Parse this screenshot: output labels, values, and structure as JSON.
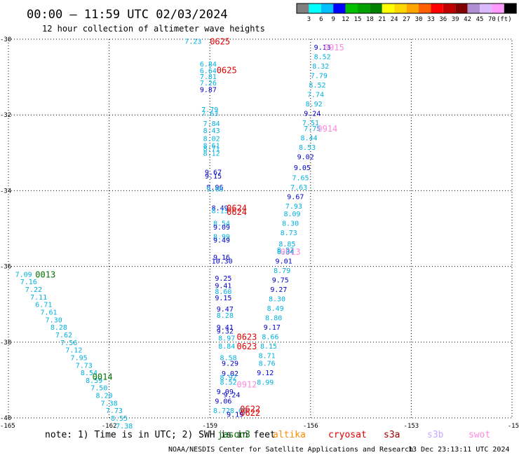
{
  "header": {
    "title": "00:00 – 11:59 UTC 02/03/2024",
    "subtitle": "12 hour collection of altimeter wave heights"
  },
  "colorbar": {
    "colors": [
      "#7f7f7f",
      "#00ffff",
      "#00bfff",
      "#0000ff",
      "#00c000",
      "#00a000",
      "#008000",
      "#ffff00",
      "#ffd700",
      "#ffa500",
      "#ff6000",
      "#ff0000",
      "#c00000",
      "#800000",
      "#b08fd0",
      "#dcb8ff",
      "#ff99ff",
      "#000000"
    ],
    "labels": [
      "3",
      "6",
      "9",
      "12",
      "15",
      "18",
      "21",
      "24",
      "27",
      "30",
      "33",
      "36",
      "39",
      "42",
      "45",
      "70",
      "(ft)"
    ]
  },
  "chart_data": {
    "type": "scatter",
    "xlim": [
      -165,
      -150
    ],
    "ylim": [
      -40,
      -30
    ],
    "x_ticks": [
      "-165",
      "-162",
      "-159",
      "-156",
      "-153",
      "-15"
    ],
    "y_ticks": [
      "-30",
      "-32",
      "-34",
      "-36",
      "-38",
      "-40"
    ],
    "grid": true,
    "colors": {
      "cyan": "#00b0e0",
      "blue": "#0000cc",
      "green": "#007000",
      "red": "#e00000",
      "pink": "#ff88dd"
    },
    "track_labels": [
      {
        "text": "0625",
        "x": -159.0,
        "y": -30.05,
        "color": "red"
      },
      {
        "text": "0625",
        "x": -158.8,
        "y": -30.8,
        "color": "red"
      },
      {
        "text": "0915",
        "x": -155.6,
        "y": -30.2,
        "color": "pink"
      },
      {
        "text": "0914",
        "x": -155.8,
        "y": -32.35,
        "color": "pink"
      },
      {
        "text": "0624",
        "x": -158.5,
        "y": -34.45,
        "color": "red"
      },
      {
        "text": "0624",
        "x": -158.5,
        "y": -34.55,
        "color": "red"
      },
      {
        "text": "0913",
        "x": -156.9,
        "y": -35.6,
        "color": "pink"
      },
      {
        "text": "0013",
        "x": -164.2,
        "y": -36.2,
        "color": "green"
      },
      {
        "text": "0623",
        "x": -158.2,
        "y": -37.85,
        "color": "red"
      },
      {
        "text": "0623",
        "x": -158.2,
        "y": -38.1,
        "color": "red"
      },
      {
        "text": "0014",
        "x": -162.5,
        "y": -38.9,
        "color": "green"
      },
      {
        "text": "0912",
        "x": -158.2,
        "y": -39.1,
        "color": "pink"
      },
      {
        "text": "0622",
        "x": -158.1,
        "y": -39.75,
        "color": "red"
      },
      {
        "text": "0622",
        "x": -158.1,
        "y": -39.85,
        "color": "red"
      }
    ],
    "points": [
      {
        "v": "7.23",
        "x": -159.75,
        "y": -30.05,
        "color": "cyan"
      },
      {
        "v": "6.84",
        "x": -159.3,
        "y": -30.65,
        "color": "cyan"
      },
      {
        "v": "6.64",
        "x": -159.3,
        "y": -30.82,
        "color": "cyan"
      },
      {
        "v": "7.81",
        "x": -159.3,
        "y": -30.98,
        "color": "cyan"
      },
      {
        "v": "7.26",
        "x": -159.3,
        "y": -31.15,
        "color": "cyan"
      },
      {
        "v": "9.87",
        "x": -159.3,
        "y": -31.32,
        "color": "blue"
      },
      {
        "v": "7.79",
        "x": -159.25,
        "y": -31.85,
        "color": "cyan"
      },
      {
        "v": "7.63",
        "x": -159.25,
        "y": -31.95,
        "color": "cyan"
      },
      {
        "v": "7.84",
        "x": -159.2,
        "y": -32.22,
        "color": "cyan"
      },
      {
        "v": "8.43",
        "x": -159.2,
        "y": -32.4,
        "color": "cyan"
      },
      {
        "v": "8.02",
        "x": -159.2,
        "y": -32.62,
        "color": "cyan"
      },
      {
        "v": "8.61",
        "x": -159.2,
        "y": -32.8,
        "color": "cyan"
      },
      {
        "v": "8.71",
        "x": -159.2,
        "y": -32.88,
        "color": "cyan"
      },
      {
        "v": "8.12",
        "x": -159.2,
        "y": -33.0,
        "color": "cyan"
      },
      {
        "v": "9.67",
        "x": -159.15,
        "y": -33.5,
        "color": "blue"
      },
      {
        "v": "9.15",
        "x": -159.15,
        "y": -33.6,
        "color": "blue"
      },
      {
        "v": "8.96",
        "x": -159.1,
        "y": -33.9,
        "color": "blue"
      },
      {
        "v": "9.06",
        "x": -159.1,
        "y": -33.95,
        "color": "cyan"
      },
      {
        "v": "8.49",
        "x": -158.95,
        "y": -34.45,
        "color": "blue"
      },
      {
        "v": "8.13",
        "x": -158.95,
        "y": -34.52,
        "color": "cyan"
      },
      {
        "v": "8.54",
        "x": -158.9,
        "y": -34.85,
        "color": "cyan"
      },
      {
        "v": "9.09",
        "x": -158.9,
        "y": -34.95,
        "color": "blue"
      },
      {
        "v": "8.99",
        "x": -158.9,
        "y": -35.2,
        "color": "cyan"
      },
      {
        "v": "9.49",
        "x": -158.9,
        "y": -35.3,
        "color": "blue"
      },
      {
        "v": "9.16",
        "x": -158.9,
        "y": -35.75,
        "color": "blue"
      },
      {
        "v": "10.30",
        "x": -158.95,
        "y": -35.85,
        "color": "blue"
      },
      {
        "v": "9.25",
        "x": -158.85,
        "y": -36.3,
        "color": "blue"
      },
      {
        "v": "9.41",
        "x": -158.85,
        "y": -36.5,
        "color": "blue"
      },
      {
        "v": "8.60",
        "x": -158.85,
        "y": -36.65,
        "color": "cyan"
      },
      {
        "v": "9.15",
        "x": -158.85,
        "y": -36.82,
        "color": "blue"
      },
      {
        "v": "9.47",
        "x": -158.8,
        "y": -37.12,
        "color": "blue"
      },
      {
        "v": "8.28",
        "x": -158.8,
        "y": -37.28,
        "color": "cyan"
      },
      {
        "v": "9.41",
        "x": -158.8,
        "y": -37.6,
        "color": "blue"
      },
      {
        "v": "9.32",
        "x": -158.8,
        "y": -37.7,
        "color": "blue"
      },
      {
        "v": "8.97",
        "x": -158.75,
        "y": -37.88,
        "color": "cyan"
      },
      {
        "v": "8.84",
        "x": -158.75,
        "y": -38.1,
        "color": "cyan"
      },
      {
        "v": "8.58",
        "x": -158.7,
        "y": -38.4,
        "color": "cyan"
      },
      {
        "v": "9.29",
        "x": -158.65,
        "y": -38.55,
        "color": "blue"
      },
      {
        "v": "9.02",
        "x": -158.65,
        "y": -38.82,
        "color": "blue"
      },
      {
        "v": "8.92",
        "x": -158.7,
        "y": -38.92,
        "color": "cyan"
      },
      {
        "v": "8.52",
        "x": -158.7,
        "y": -39.05,
        "color": "cyan"
      },
      {
        "v": "9.09",
        "x": -158.8,
        "y": -39.3,
        "color": "blue"
      },
      {
        "v": "9.24",
        "x": -158.6,
        "y": -39.38,
        "color": "blue"
      },
      {
        "v": "9.06",
        "x": -158.85,
        "y": -39.55,
        "color": "blue"
      },
      {
        "v": "8.72",
        "x": -158.9,
        "y": -39.8,
        "color": "cyan"
      },
      {
        "v": "8.69",
        "x": -158.4,
        "y": -39.8,
        "color": "cyan"
      },
      {
        "v": "9.19",
        "x": -158.5,
        "y": -39.9,
        "color": "blue"
      },
      {
        "v": "9.13",
        "x": -155.9,
        "y": -30.2,
        "color": "blue"
      },
      {
        "v": "8.52",
        "x": -155.9,
        "y": -30.45,
        "color": "cyan"
      },
      {
        "v": "8.32",
        "x": -155.95,
        "y": -30.7,
        "color": "cyan"
      },
      {
        "v": "7.79",
        "x": -156.0,
        "y": -30.95,
        "color": "cyan"
      },
      {
        "v": "8.52",
        "x": -156.05,
        "y": -31.2,
        "color": "cyan"
      },
      {
        "v": "7.74",
        "x": -156.1,
        "y": -31.45,
        "color": "cyan"
      },
      {
        "v": "8.92",
        "x": -156.15,
        "y": -31.7,
        "color": "cyan"
      },
      {
        "v": "9.24",
        "x": -156.2,
        "y": -31.95,
        "color": "blue"
      },
      {
        "v": "7.51",
        "x": -156.25,
        "y": -32.2,
        "color": "cyan"
      },
      {
        "v": "7.75",
        "x": -156.2,
        "y": -32.35,
        "color": "cyan"
      },
      {
        "v": "8.44",
        "x": -156.3,
        "y": -32.6,
        "color": "cyan"
      },
      {
        "v": "8.53",
        "x": -156.35,
        "y": -32.85,
        "color": "cyan"
      },
      {
        "v": "9.02",
        "x": -156.4,
        "y": -33.1,
        "color": "blue"
      },
      {
        "v": "9.05",
        "x": -156.5,
        "y": -33.38,
        "color": "blue"
      },
      {
        "v": "7.65",
        "x": -156.55,
        "y": -33.65,
        "color": "cyan"
      },
      {
        "v": "7.63",
        "x": -156.6,
        "y": -33.9,
        "color": "cyan"
      },
      {
        "v": "9.67",
        "x": -156.7,
        "y": -34.15,
        "color": "blue"
      },
      {
        "v": "7.93",
        "x": -156.75,
        "y": -34.4,
        "color": "cyan"
      },
      {
        "v": "8.09",
        "x": -156.8,
        "y": -34.6,
        "color": "cyan"
      },
      {
        "v": "8.30",
        "x": -156.85,
        "y": -34.85,
        "color": "cyan"
      },
      {
        "v": "8.73",
        "x": -156.9,
        "y": -35.1,
        "color": "cyan"
      },
      {
        "v": "8.85",
        "x": -156.95,
        "y": -35.4,
        "color": "cyan"
      },
      {
        "v": "8.87",
        "x": -157.0,
        "y": -35.55,
        "color": "cyan"
      },
      {
        "v": "8.84",
        "x": -157.0,
        "y": -35.6,
        "color": "cyan"
      },
      {
        "v": "9.01",
        "x": -157.05,
        "y": -35.85,
        "color": "blue"
      },
      {
        "v": "8.79",
        "x": -157.1,
        "y": -36.1,
        "color": "cyan"
      },
      {
        "v": "9.75",
        "x": -157.15,
        "y": -36.35,
        "color": "blue"
      },
      {
        "v": "9.27",
        "x": -157.2,
        "y": -36.6,
        "color": "blue"
      },
      {
        "v": "8.30",
        "x": -157.25,
        "y": -36.85,
        "color": "cyan"
      },
      {
        "v": "8.49",
        "x": -157.3,
        "y": -37.1,
        "color": "cyan"
      },
      {
        "v": "8.80",
        "x": -157.35,
        "y": -37.35,
        "color": "cyan"
      },
      {
        "v": "9.17",
        "x": -157.4,
        "y": -37.6,
        "color": "blue"
      },
      {
        "v": "8.66",
        "x": -157.45,
        "y": -37.85,
        "color": "cyan"
      },
      {
        "v": "8.15",
        "x": -157.5,
        "y": -38.1,
        "color": "cyan"
      },
      {
        "v": "8.71",
        "x": -157.55,
        "y": -38.35,
        "color": "cyan"
      },
      {
        "v": "8.76",
        "x": -157.55,
        "y": -38.55,
        "color": "cyan"
      },
      {
        "v": "9.12",
        "x": -157.6,
        "y": -38.8,
        "color": "blue"
      },
      {
        "v": "8.99",
        "x": -157.6,
        "y": -39.05,
        "color": "cyan"
      },
      {
        "v": "7.09",
        "x": -164.8,
        "y": -36.2,
        "color": "cyan"
      },
      {
        "v": "7.16",
        "x": -164.65,
        "y": -36.4,
        "color": "cyan"
      },
      {
        "v": "7.22",
        "x": -164.5,
        "y": -36.6,
        "color": "cyan"
      },
      {
        "v": "7.11",
        "x": -164.35,
        "y": -36.8,
        "color": "cyan"
      },
      {
        "v": "6.71",
        "x": -164.2,
        "y": -37.0,
        "color": "cyan"
      },
      {
        "v": "7.61",
        "x": -164.05,
        "y": -37.2,
        "color": "cyan"
      },
      {
        "v": "7.30",
        "x": -163.9,
        "y": -37.4,
        "color": "cyan"
      },
      {
        "v": "8.28",
        "x": -163.75,
        "y": -37.6,
        "color": "cyan"
      },
      {
        "v": "7.62",
        "x": -163.6,
        "y": -37.8,
        "color": "cyan"
      },
      {
        "v": "7.56",
        "x": -163.45,
        "y": -38.0,
        "color": "cyan"
      },
      {
        "v": "7.12",
        "x": -163.3,
        "y": -38.2,
        "color": "cyan"
      },
      {
        "v": "7.95",
        "x": -163.15,
        "y": -38.4,
        "color": "cyan"
      },
      {
        "v": "7.73",
        "x": -163.0,
        "y": -38.6,
        "color": "cyan"
      },
      {
        "v": "8.54",
        "x": -162.85,
        "y": -38.8,
        "color": "cyan"
      },
      {
        "v": "8.59",
        "x": -162.7,
        "y": -39.0,
        "color": "cyan"
      },
      {
        "v": "7.50",
        "x": -162.55,
        "y": -39.2,
        "color": "cyan"
      },
      {
        "v": "8.20",
        "x": -162.4,
        "y": -39.4,
        "color": "cyan"
      },
      {
        "v": "7.38",
        "x": -162.25,
        "y": -39.6,
        "color": "cyan"
      },
      {
        "v": "7.73",
        "x": -162.1,
        "y": -39.8,
        "color": "cyan"
      },
      {
        "v": "8.55",
        "x": -161.95,
        "y": -40.0,
        "color": "cyan"
      },
      {
        "v": "7.38",
        "x": -161.8,
        "y": -40.2,
        "color": "cyan"
      }
    ]
  },
  "footer": {
    "note": "note: 1) Time is in UTC; 2) SWH is in feet",
    "satellites": [
      {
        "name": "jason3",
        "color": "#007000"
      },
      {
        "name": "altika",
        "color": "#ff8c00"
      },
      {
        "name": "cryosat",
        "color": "#e00000"
      },
      {
        "name": "s3a",
        "color": "#a00000"
      },
      {
        "name": "s3b",
        "color": "#c8a8ff"
      },
      {
        "name": "swot",
        "color": "#ff88dd"
      }
    ],
    "credit": "NOAA/NESDIS Center for Satellite Applications and Research",
    "timestamp": "13 Dec 23:13:11 UTC 2024"
  }
}
